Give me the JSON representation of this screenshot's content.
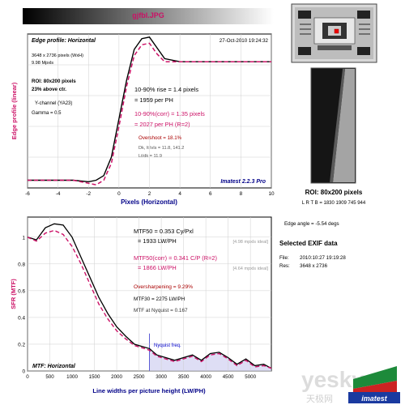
{
  "header": {
    "file_title": "gjfbl.JPG"
  },
  "edge_panel": {
    "title": "Edge profile: Horizontal",
    "timestamp": "27-Oct-2010 19:24:32",
    "size": "3648 x 2736 pixels (WxH)",
    "mpxls": "9.98 Mpxls",
    "roi": "ROI: 80x200 pixels",
    "above": "23% above ctr.",
    "channel": "Y-channel  (YA23)",
    "gamma": "Gamma = 0.5",
    "rise": "10-90% rise = 1.4 pixels",
    "per_ph": "= 1959 per PH",
    "rise_corr": "10-90%(corr) = 1.35 pixels",
    "per_ph_corr": "= 2027 per PH  (R=2)",
    "overshoot": "Overshoot = 18.1%",
    "dk_lvls": "Dk, lt lvls = 11.8, 141.2",
    "ltdk": "Lt/dk = 11.9",
    "brand": "Imatest 2.2.3 Pro",
    "colors": {
      "raw": "#000000",
      "corr": "#cc1166"
    }
  },
  "mtf_panel": {
    "title": "MTF: Horizontal",
    "mtf50": "MTF50 = 0.353 Cy/Pxl",
    "mtf50_lwph": "= 1933 LW/PH",
    "mtf50_ideal": "[4.98 mpxls ideal]",
    "mtf50_corr": "MTF50(corr) = 0.341 C/P  (R=2)",
    "mtf50_corr_lwph": "= 1866 LW/PH",
    "mtf50_corr_ideal": "[4.64 mpxls ideal]",
    "oversharp": "Oversharpening = 9.29%",
    "mtf30": "MTF30 = 2275 LW/PH",
    "nyq_mtf": "MTF at Nyquist = 0.167",
    "nyquist_label": "Nyquist freq."
  },
  "right_panel": {
    "roi_label": "ROI: 80x200 pixels",
    "lrtb": "L R T B = 1830 1909  745 944",
    "edge_angle": "Edge angle = -5.54 degs",
    "exif_title": "Selected EXIF data",
    "file_label": "File:",
    "file_date": "2010:10:27 19:19:28",
    "res_label": "Res:",
    "res_value": "3648 x 2736"
  },
  "watermark": {
    "text": "yesky",
    "sub": "天极网",
    "logo": "imatest"
  },
  "chart_data": [
    {
      "type": "line",
      "title": "Edge profile: Horizontal",
      "xlabel": "Pixels (Horizontal)",
      "ylabel": "Edge profile (linear)",
      "xlim": [
        -6,
        10
      ],
      "xticks": [
        "-6",
        "-4",
        "-2",
        "0",
        "2",
        "4",
        "6",
        "8",
        "10"
      ],
      "grid": true,
      "series": [
        {
          "name": "raw",
          "x": [
            -6,
            -5,
            -4,
            -3,
            -2,
            -1.5,
            -1,
            -0.5,
            0,
            0.5,
            1,
            1.5,
            2,
            2.5,
            3,
            4,
            5,
            6,
            7,
            8,
            9,
            10
          ],
          "y": [
            0.05,
            0.05,
            0.05,
            0.05,
            0.04,
            0.05,
            0.08,
            0.2,
            0.45,
            0.7,
            0.9,
            0.97,
            0.98,
            0.91,
            0.84,
            0.82,
            0.82,
            0.82,
            0.82,
            0.82,
            0.82,
            0.82
          ]
        },
        {
          "name": "corr",
          "x": [
            -6,
            -5,
            -4,
            -3,
            -2,
            -1.5,
            -1,
            -0.5,
            0,
            0.5,
            1,
            1.5,
            2,
            2.5,
            3,
            4,
            5,
            6,
            7,
            8,
            9,
            10
          ],
          "y": [
            0.05,
            0.05,
            0.05,
            0.05,
            0.03,
            0.02,
            0.05,
            0.16,
            0.4,
            0.66,
            0.86,
            0.93,
            0.94,
            0.87,
            0.82,
            0.82,
            0.82,
            0.82,
            0.82,
            0.82,
            0.82,
            0.82
          ]
        }
      ]
    },
    {
      "type": "line",
      "title": "MTF: Horizontal",
      "xlabel": "Line widths per picture height (LW/PH)",
      "ylabel": "SFR (MTF)",
      "xlim": [
        0,
        5470
      ],
      "ylim": [
        0,
        1.15
      ],
      "xticks": [
        "0",
        "500",
        "1000",
        "1500",
        "2000",
        "2500",
        "3000",
        "3500",
        "4000",
        "4500",
        "5000"
      ],
      "yticks": [
        "0",
        "0.2",
        "0.4",
        "0.6",
        "0.8",
        "1"
      ],
      "nyquist_x": 2736,
      "grid": true,
      "series": [
        {
          "name": "raw",
          "x": [
            0,
            200,
            400,
            600,
            800,
            1000,
            1200,
            1400,
            1600,
            1800,
            2000,
            2200,
            2400,
            2600,
            2736,
            2900,
            3100,
            3300,
            3500,
            3700,
            3900,
            4100,
            4300,
            4500,
            4700,
            4900,
            5100,
            5300,
            5470
          ],
          "y": [
            1.0,
            0.98,
            1.07,
            1.1,
            1.09,
            1.0,
            0.85,
            0.7,
            0.55,
            0.43,
            0.33,
            0.26,
            0.2,
            0.18,
            0.167,
            0.12,
            0.1,
            0.08,
            0.1,
            0.12,
            0.08,
            0.13,
            0.14,
            0.1,
            0.05,
            0.09,
            0.04,
            0.05,
            0.02
          ]
        },
        {
          "name": "corr",
          "x": [
            0,
            200,
            400,
            600,
            800,
            1000,
            1200,
            1400,
            1600,
            1800,
            2000,
            2200,
            2400,
            2600,
            2736,
            2900,
            3100,
            3300,
            3500,
            3700,
            3900,
            4100,
            4300,
            4500,
            4700,
            4900,
            5100,
            5300,
            5470
          ],
          "y": [
            1.0,
            0.97,
            1.03,
            1.05,
            1.02,
            0.93,
            0.8,
            0.65,
            0.5,
            0.39,
            0.3,
            0.24,
            0.19,
            0.17,
            0.155,
            0.11,
            0.09,
            0.07,
            0.09,
            0.11,
            0.07,
            0.12,
            0.13,
            0.09,
            0.04,
            0.08,
            0.03,
            0.04,
            0.02
          ]
        }
      ]
    }
  ]
}
